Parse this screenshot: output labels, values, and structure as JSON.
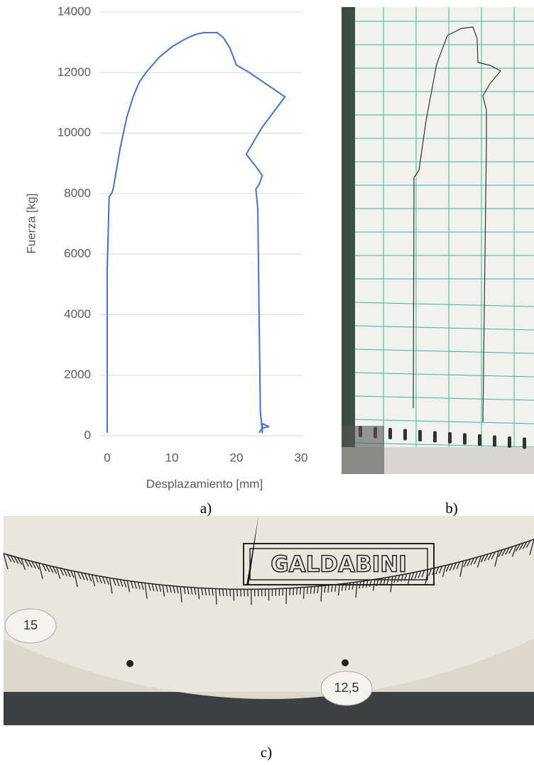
{
  "chart_data": {
    "type": "line",
    "x_label": "Desplazamiento [mm]",
    "y_label": "Fuerza [kg]",
    "xlim": [
      0,
      30
    ],
    "xticks": [
      0,
      10,
      20,
      30
    ],
    "ylim": [
      0,
      14000
    ],
    "yticks": [
      0,
      2000,
      4000,
      6000,
      8000,
      10000,
      12000,
      14000
    ],
    "grid": true,
    "x": [
      0,
      0,
      0.3,
      0.8,
      1,
      2,
      3,
      4,
      5,
      6,
      8,
      10,
      12,
      13,
      14,
      15,
      17,
      18,
      19,
      20,
      22,
      27.5,
      24,
      21.5,
      23,
      24,
      23.5,
      23,
      23.3,
      23.5,
      23.7,
      24,
      24,
      25,
      24,
      23.5
    ],
    "series": [
      {
        "color": "#4472c4",
        "values": [
          100,
          5500,
          7900,
          8050,
          8250,
          9500,
          10500,
          11200,
          11700,
          12000,
          12500,
          12850,
          13100,
          13200,
          13280,
          13320,
          13320,
          13150,
          12800,
          12250,
          12000,
          11200,
          10200,
          9300,
          8900,
          8600,
          8300,
          8150,
          7500,
          4000,
          800,
          100,
          400,
          300,
          250,
          100
        ]
      }
    ]
  },
  "panels": {
    "a": "a)",
    "b": "b)",
    "c": "c)"
  },
  "photo_c": {
    "brand": "GALDABINI",
    "dial_labels": [
      "15",
      "12,5"
    ]
  }
}
